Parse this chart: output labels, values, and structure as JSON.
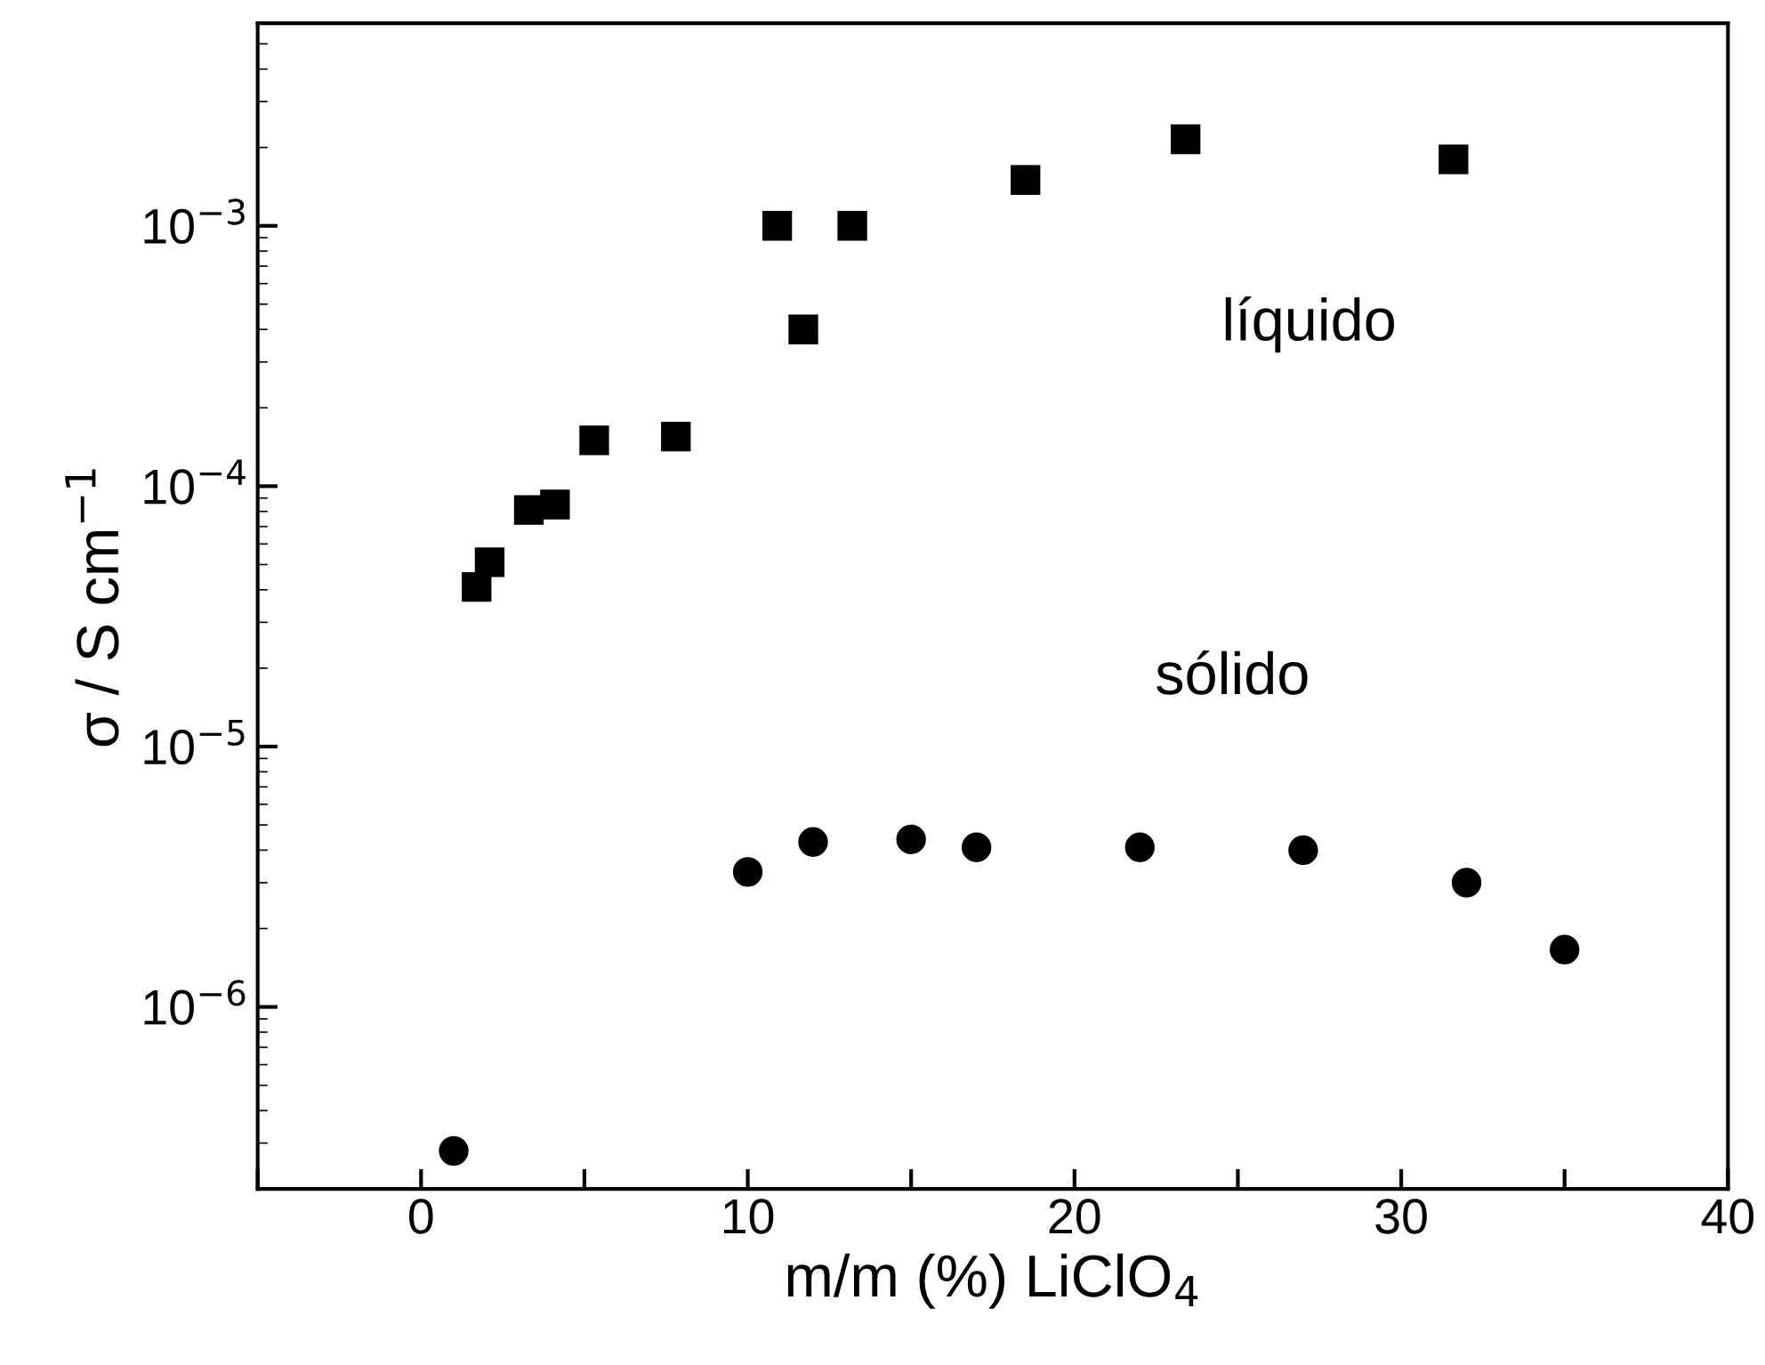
{
  "chart_data": {
    "type": "scatter",
    "xlabel": "m/m (%) LiClO$_{4}$",
    "ylabel": "σ / S cm$^{−1}$",
    "log": "y",
    "grid": false,
    "legend": false,
    "xlim": [
      -5,
      40
    ],
    "xticks": [
      {
        "value": -5,
        "label": null
      },
      0,
      {
        "value": 5,
        "label": null
      },
      10,
      {
        "value": 15,
        "label": null
      },
      20,
      {
        "value": 25,
        "label": null
      },
      30,
      {
        "value": 35,
        "label": null
      },
      40
    ],
    "ylim": [
      2e-07,
      0.006
    ],
    "yticks": [
      {
        "value": 1e-06,
        "label": "10$^{−6}$"
      },
      {
        "value": 1e-05,
        "label": "10$^{−5}$"
      },
      {
        "value": 0.0001,
        "label": "10$^{−4}$"
      },
      {
        "value": 0.001,
        "label": "10$^{−3}$"
      }
    ],
    "series": [
      {
        "name": "líquido",
        "color": "#000000",
        "marker": "square",
        "x": [
          1.7,
          2.1,
          3.3,
          4.1,
          5.3,
          7.8,
          10.9,
          11.7,
          13.2,
          18.5,
          23.4,
          31.6
        ],
        "values": [
          4.1e-05,
          5.1e-05,
          8.1e-05,
          8.5e-05,
          0.00015,
          0.000155,
          0.001,
          0.0004,
          0.001,
          0.0015,
          0.00215,
          0.0018
        ]
      },
      {
        "name": "sólido",
        "color": "#000000",
        "marker": "circle",
        "x": [
          1,
          10,
          12,
          15,
          17,
          22,
          27,
          32,
          35
        ],
        "values": [
          2.8e-07,
          3.3e-06,
          4.3e-06,
          4.4e-06,
          4.1e-06,
          4.1e-06,
          4e-06,
          3e-06,
          1.66e-06
        ]
      }
    ]
  }
}
